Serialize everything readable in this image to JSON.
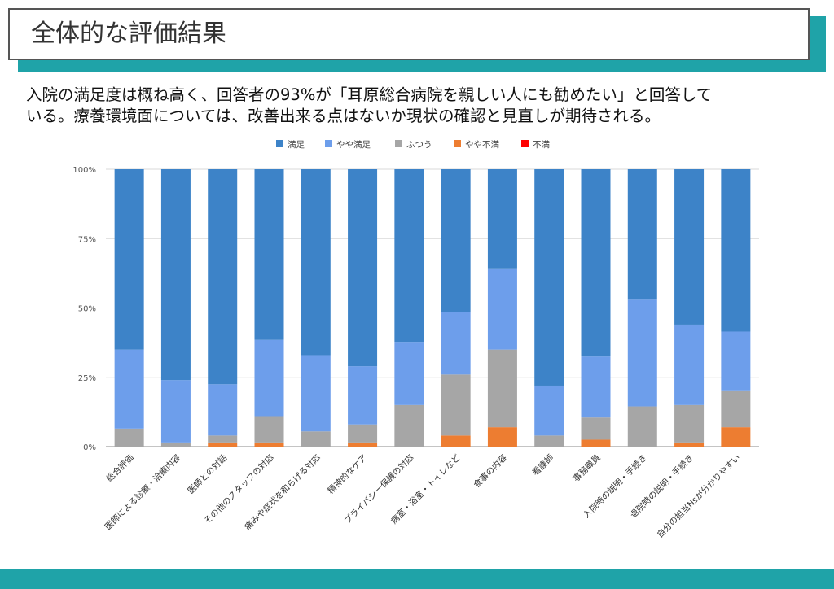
{
  "header": {
    "title": "全体的な評価結果"
  },
  "summary": {
    "line1": "入院の満足度は概ね高く、回答者の93%が「耳原総合病院を親しい人にも勧めたい」と回答して",
    "line2": "いる。療養環境面については、改善出来る点はないか現状の確認と見直しが期待される。"
  },
  "colors": {
    "accent": "#1fa3a8",
    "series": [
      "#3d83c8",
      "#6d9eeb",
      "#a6a6a6",
      "#ed7d31",
      "#ff0000"
    ]
  },
  "chart_data": {
    "type": "bar",
    "stacked": true,
    "categories": [
      "総合評価",
      "医師による診療・治療内容",
      "医師との対話",
      "その他のスタッフの対応",
      "痛みや症状を和らげる対応",
      "精神的なケア",
      "プライバシー保護の対応",
      "病室・浴室・トイレなど",
      "食事の内容",
      "看護師",
      "事務職員",
      "入院時の説明・手続き",
      "退院時の説明・手続き",
      "自分の担当Nsが分かりやすい"
    ],
    "series": [
      {
        "name": "不満",
        "values": [
          0,
          0,
          0,
          0,
          0,
          0,
          0,
          0,
          0,
          0,
          0,
          0,
          0,
          0
        ]
      },
      {
        "name": "やや不満",
        "values": [
          0,
          0,
          1.5,
          1.5,
          0,
          1.5,
          0,
          4,
          7,
          0,
          2.5,
          0,
          1.5,
          7
        ]
      },
      {
        "name": "ふつう",
        "values": [
          6.5,
          1.5,
          2.5,
          9.5,
          5.5,
          6.5,
          15,
          22,
          28,
          4,
          8,
          14.5,
          13.5,
          13
        ]
      },
      {
        "name": "やや満足",
        "values": [
          28.5,
          22.5,
          18.5,
          27.5,
          27.5,
          21,
          22.5,
          22.5,
          29,
          18,
          22,
          38.5,
          29,
          21.5
        ]
      },
      {
        "name": "満足",
        "values": [
          65,
          76,
          77.5,
          61.5,
          67,
          71,
          62.5,
          51.5,
          36,
          78,
          67.5,
          47,
          56,
          58.5
        ]
      }
    ],
    "legend_order": [
      "満足",
      "やや満足",
      "ふつう",
      "やや不満",
      "不満"
    ],
    "legend_position": "top",
    "yticks": [
      "0%",
      "25%",
      "50%",
      "75%",
      "100%"
    ],
    "ylim": [
      0,
      100
    ],
    "grid": true
  }
}
